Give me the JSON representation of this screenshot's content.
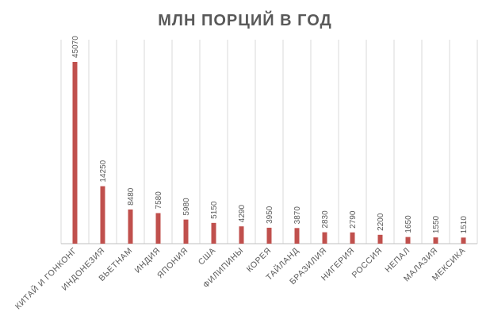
{
  "chart_data": {
    "type": "bar",
    "title": "МЛН ПОРЦИЙ В ГОД",
    "xlabel": "",
    "ylabel": "",
    "categories": [
      "КИТАЙ И ГОНКОНГ",
      "ИНДОНЕЗИЯ",
      "ВЬЕТНАМ",
      "ИНДИЯ",
      "ЯПОНИЯ",
      "США",
      "ФИЛИПИНЫ",
      "КОРЕЯ",
      "ТАЙЛАНД",
      "БРАЗИЛИЯ",
      "НИГЕРИЯ",
      "РОССИЯ",
      "НЕПАЛ",
      "МАЛАЗИЯ",
      "МЕКСИКА"
    ],
    "values": [
      45070,
      14250,
      8480,
      7580,
      5980,
      5150,
      4290,
      3950,
      3870,
      2830,
      2790,
      2200,
      1650,
      1550,
      1510
    ],
    "ylim": [
      0,
      50000
    ],
    "grid": true,
    "legend": "none",
    "bar_color": "#c0504d"
  }
}
